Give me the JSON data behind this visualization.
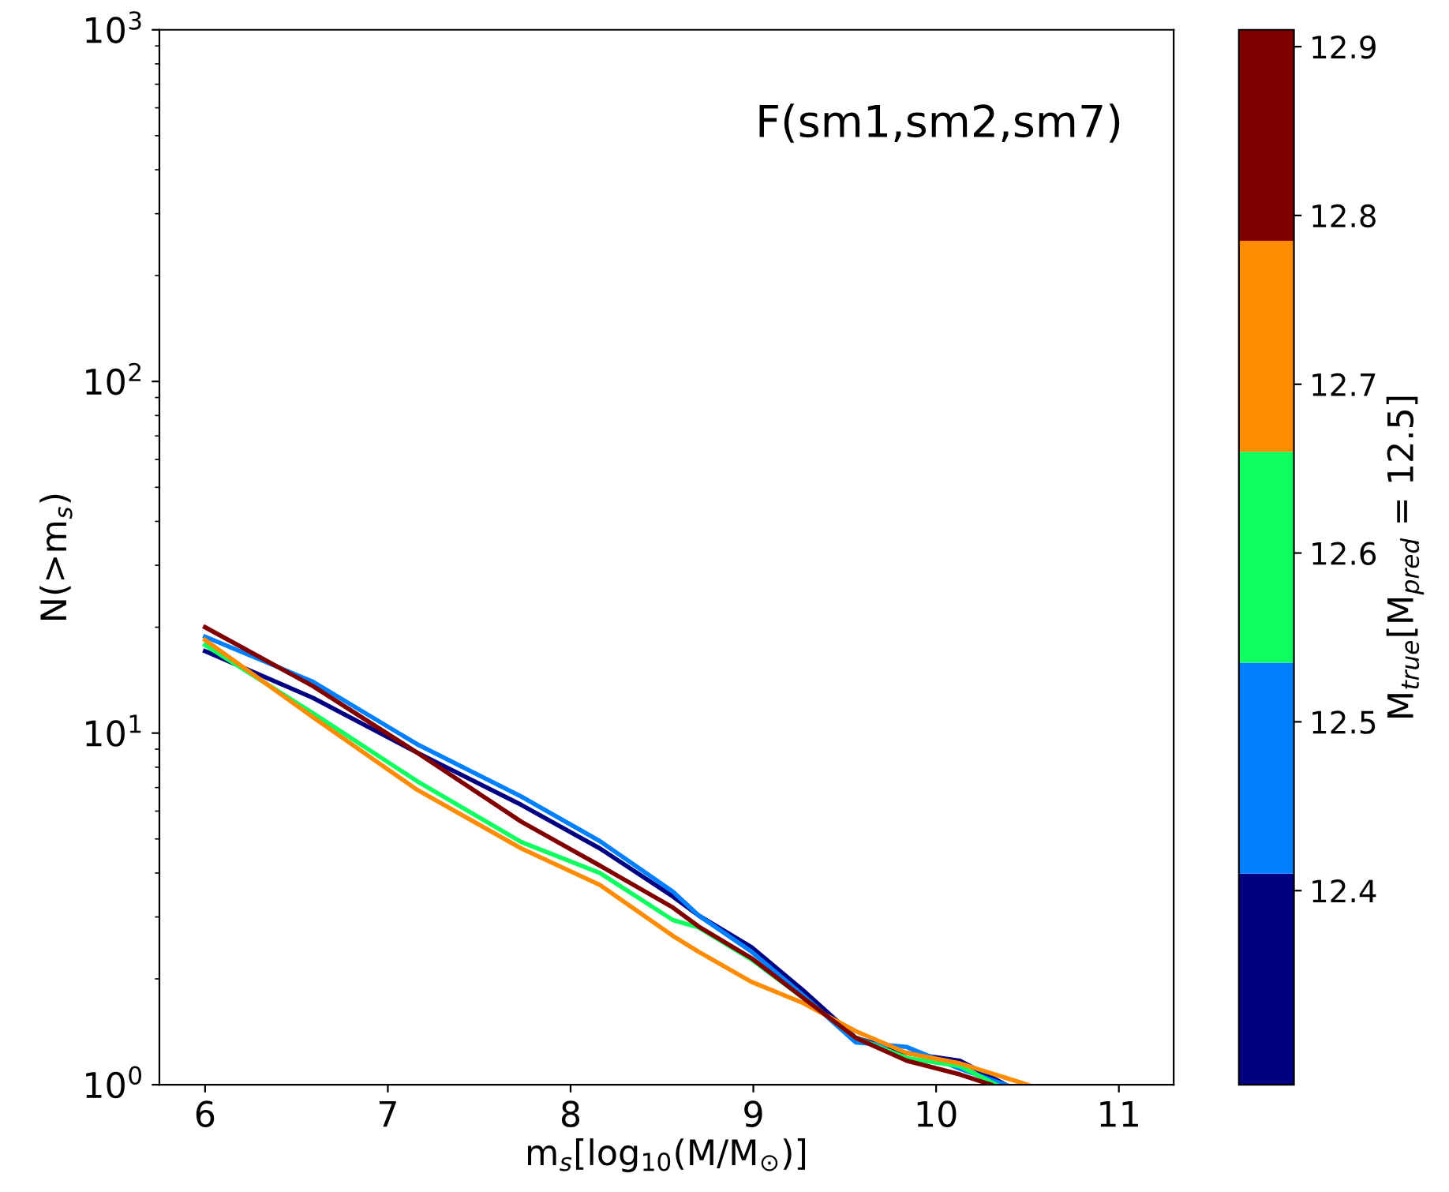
{
  "chart_data": {
    "type": "line",
    "xlabel": "m$_{s}$[log$_{10}$(M/M$_{⊙}$)]",
    "ylabel": "N(>m$_{s}$)",
    "clabel": "M$_{true}$[M$_{pred}$ = 12.5]",
    "annotations": [
      "F(sm1,sm2,sm7)"
    ],
    "log": "y",
    "grid": false,
    "marker": "none",
    "line_style": "solid",
    "xlim": [
      5.75,
      11.3
    ],
    "xticks": [
      6,
      7,
      8,
      9,
      10,
      11
    ],
    "ylim": [
      1,
      1000
    ],
    "yticks": [
      {
        "value": 1,
        "label": "10$^{0}$"
      },
      {
        "value": 10,
        "label": "10$^{1}$"
      },
      {
        "value": 100,
        "label": "10$^{2}$"
      },
      {
        "value": 1000,
        "label": "10$^{3}$"
      }
    ],
    "clim": [
      12.285,
      12.91
    ],
    "cticks": [
      12.4,
      12.5,
      12.6,
      12.7,
      12.8,
      12.9
    ],
    "series": [
      {
        "color": "#000080",
        "x": [
          6.0,
          6.59,
          7.16,
          7.73,
          8.16,
          8.56,
          8.7,
          8.99,
          9.27,
          9.56,
          9.84,
          10.13,
          10.38
        ],
        "values": [
          17.1,
          12.6,
          8.8,
          6.25,
          4.7,
          3.43,
          3.03,
          2.46,
          1.86,
          1.36,
          1.23,
          1.17,
          1.0
        ]
      },
      {
        "color": "#0080ff",
        "x": [
          6.0,
          6.59,
          7.16,
          7.73,
          8.16,
          8.56,
          8.7,
          8.99,
          9.27,
          9.56,
          9.84,
          10.13,
          10.38
        ],
        "values": [
          18.8,
          14.0,
          9.3,
          6.6,
          4.93,
          3.54,
          3.03,
          2.39,
          1.8,
          1.32,
          1.28,
          1.11,
          1.0
        ]
      },
      {
        "color": "#10ff60",
        "x": [
          6.0,
          6.59,
          7.16,
          7.73,
          8.16,
          8.56,
          8.7,
          8.99,
          9.27,
          9.56,
          9.84,
          10.13,
          10.33
        ],
        "values": [
          17.8,
          11.4,
          7.3,
          4.9,
          4.0,
          2.94,
          2.8,
          2.27,
          1.77,
          1.36,
          1.19,
          1.13,
          1.0
        ]
      },
      {
        "color": "#ff8c00",
        "x": [
          6.0,
          6.59,
          7.16,
          7.73,
          8.16,
          8.56,
          8.7,
          8.99,
          9.27,
          9.56,
          9.84,
          10.13,
          10.5
        ],
        "values": [
          18.4,
          11.1,
          6.9,
          4.7,
          3.7,
          2.65,
          2.39,
          1.96,
          1.71,
          1.42,
          1.23,
          1.15,
          1.0
        ]
      },
      {
        "color": "#800000",
        "x": [
          6.0,
          6.59,
          7.16,
          7.73,
          8.16,
          8.56,
          8.7,
          8.99,
          9.27,
          9.56,
          9.84,
          10.13,
          10.3
        ],
        "values": [
          20.0,
          13.6,
          8.8,
          5.6,
          4.2,
          3.19,
          2.82,
          2.29,
          1.77,
          1.36,
          1.17,
          1.07,
          1.0
        ]
      }
    ]
  }
}
